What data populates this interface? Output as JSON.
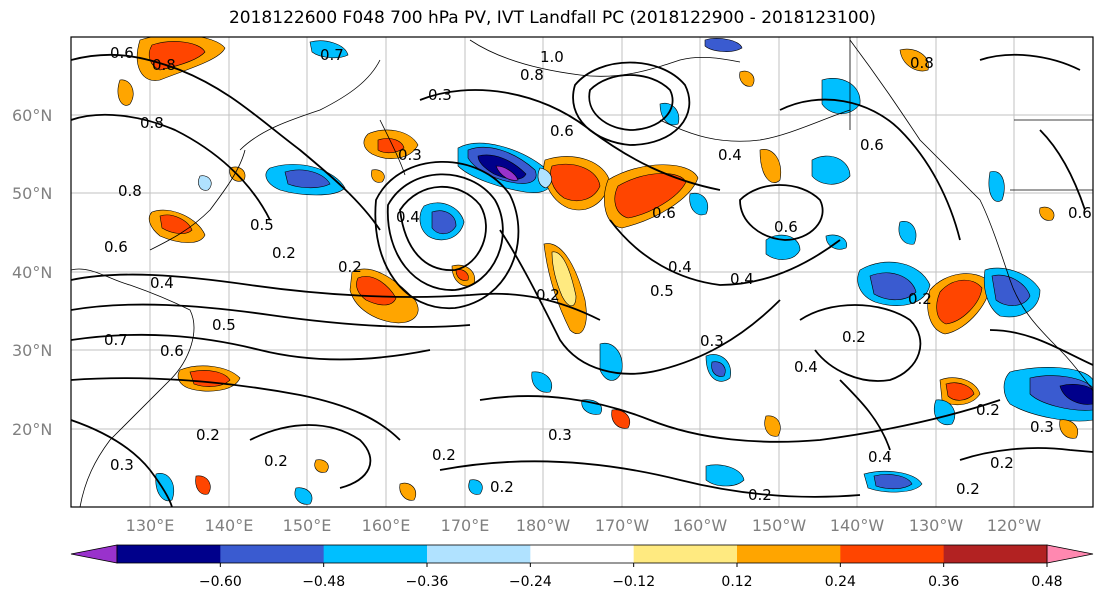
{
  "title": "2018122600 F048 700 hPa PV, IVT Landfall PC (2018122900 - 2018123100)",
  "lat_labels": [
    "60°N",
    "50°N",
    "40°N",
    "30°N",
    "20°N"
  ],
  "lon_labels": [
    "130°E",
    "140°E",
    "150°E",
    "160°E",
    "170°E",
    "180°W",
    "170°W",
    "160°W",
    "150°W",
    "140°W",
    "130°W",
    "120°W"
  ],
  "contour_labels": [
    "0.6",
    "0.8",
    "0.7",
    "0.3",
    "1.0",
    "0.8",
    "0.6",
    "0.4",
    "0.8",
    "0.8",
    "0.5",
    "0.3",
    "0.4",
    "0.2",
    "0.6",
    "0.4",
    "0.5",
    "0.6",
    "0.2",
    "0.4",
    "0.6",
    "0.5",
    "0.2",
    "0.7",
    "0.6",
    "0.4",
    "0.3",
    "0.2",
    "0.4",
    "0.2",
    "0.3",
    "0.2",
    "0.2",
    "0.2",
    "0.4",
    "0.2",
    "0.2",
    "0.3",
    "0.2",
    "0.3",
    "0.2",
    "0.2",
    "0.6",
    "0.8",
    "0.6"
  ],
  "colorbar": {
    "colors": [
      "#9932cc",
      "#00008b",
      "#3a5bd0",
      "#00bfff",
      "#b0e2ff",
      "#ffffff",
      "#ffea80",
      "#ffa500",
      "#ff4500",
      "#b22222",
      "#ff88b0"
    ],
    "tick_labels": [
      "−0.60",
      "−0.48",
      "−0.36",
      "−0.24",
      "−0.12",
      "0.12",
      "0.24",
      "0.36",
      "0.48",
      "0.60"
    ]
  }
}
